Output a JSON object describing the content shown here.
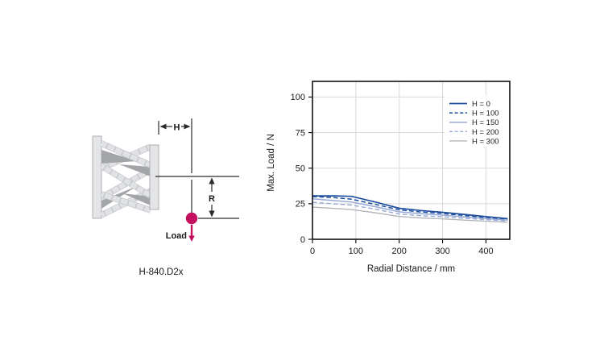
{
  "figure": {
    "caption": "H-840.D2x",
    "load_label": "Load",
    "dim_h_label": "H",
    "dim_r_label": "R",
    "load_color": "#c5105f",
    "plate_fill": "#e4e5e7",
    "plate_stroke": "#a9aaad",
    "strut_fill": "#e1e2e5",
    "strut_edge": "#c6c7ca",
    "shadow_color": "#a3a5a9"
  },
  "chart_data": {
    "type": "line",
    "title": "",
    "xlabel": "Radial Distance / mm",
    "ylabel": "Max. Load / N",
    "xlim": [
      0,
      455
    ],
    "ylim": [
      0,
      111
    ],
    "xticks": [
      0,
      100,
      200,
      300,
      400
    ],
    "yticks": [
      0,
      25,
      50,
      75,
      100
    ],
    "grid": true,
    "grid_color": "#dadada",
    "border_color": "#000000",
    "legend_position": "top-right",
    "x": [
      0,
      50,
      90,
      150,
      200,
      250,
      300,
      350,
      400,
      450
    ],
    "series": [
      {
        "name": "H = 0",
        "color": "#1f4f9e",
        "dash": false,
        "width": 1.7,
        "values": [
          30.5,
          30.5,
          30.2,
          25.8,
          21.8,
          20.2,
          19.0,
          17.5,
          15.9,
          14.5
        ]
      },
      {
        "name": "H = 100",
        "color": "#1f4f9e",
        "dash": true,
        "width": 1.5,
        "values": [
          30.0,
          29.3,
          28.2,
          24.2,
          20.7,
          19.2,
          18.1,
          16.7,
          15.3,
          14.0
        ]
      },
      {
        "name": "H = 150",
        "color": "#97aad6",
        "dash": false,
        "width": 1.5,
        "values": [
          28.5,
          27.2,
          26.2,
          22.6,
          19.3,
          18.0,
          17.0,
          15.8,
          14.6,
          13.4
        ]
      },
      {
        "name": "H = 200",
        "color": "#97aad6",
        "dash": true,
        "width": 1.4,
        "values": [
          26.0,
          24.9,
          24.0,
          20.9,
          17.8,
          16.6,
          15.8,
          14.8,
          13.8,
          12.8
        ]
      },
      {
        "name": "H = 300",
        "color": "#b4b7bb",
        "dash": false,
        "width": 1.4,
        "values": [
          22.6,
          21.7,
          20.9,
          18.4,
          16.0,
          15.0,
          14.3,
          13.5,
          12.7,
          12.0
        ]
      }
    ]
  }
}
